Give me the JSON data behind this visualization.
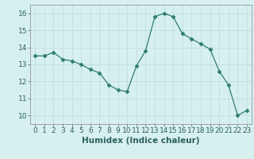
{
  "x": [
    0,
    1,
    2,
    3,
    4,
    5,
    6,
    7,
    8,
    9,
    10,
    11,
    12,
    13,
    14,
    15,
    16,
    17,
    18,
    19,
    20,
    21,
    22,
    23
  ],
  "y": [
    13.5,
    13.5,
    13.7,
    13.3,
    13.2,
    13.0,
    12.7,
    12.5,
    11.8,
    11.5,
    11.4,
    12.9,
    13.8,
    15.8,
    16.0,
    15.8,
    14.8,
    14.5,
    14.2,
    13.9,
    12.6,
    11.8,
    10.0,
    10.3
  ],
  "line_color": "#2e7d6e",
  "marker": "D",
  "marker_size": 2.5,
  "background_color": "#d6f0ef",
  "grid_color": "#c0dedd",
  "xlabel": "Humidex (Indice chaleur)",
  "ylim": [
    9.5,
    16.5
  ],
  "xlim": [
    -0.5,
    23.5
  ],
  "yticks": [
    10,
    11,
    12,
    13,
    14,
    15,
    16
  ],
  "xticks": [
    0,
    1,
    2,
    3,
    4,
    5,
    6,
    7,
    8,
    9,
    10,
    11,
    12,
    13,
    14,
    15,
    16,
    17,
    18,
    19,
    20,
    21,
    22,
    23
  ],
  "xlabel_fontsize": 7.5,
  "tick_fontsize": 6.5
}
